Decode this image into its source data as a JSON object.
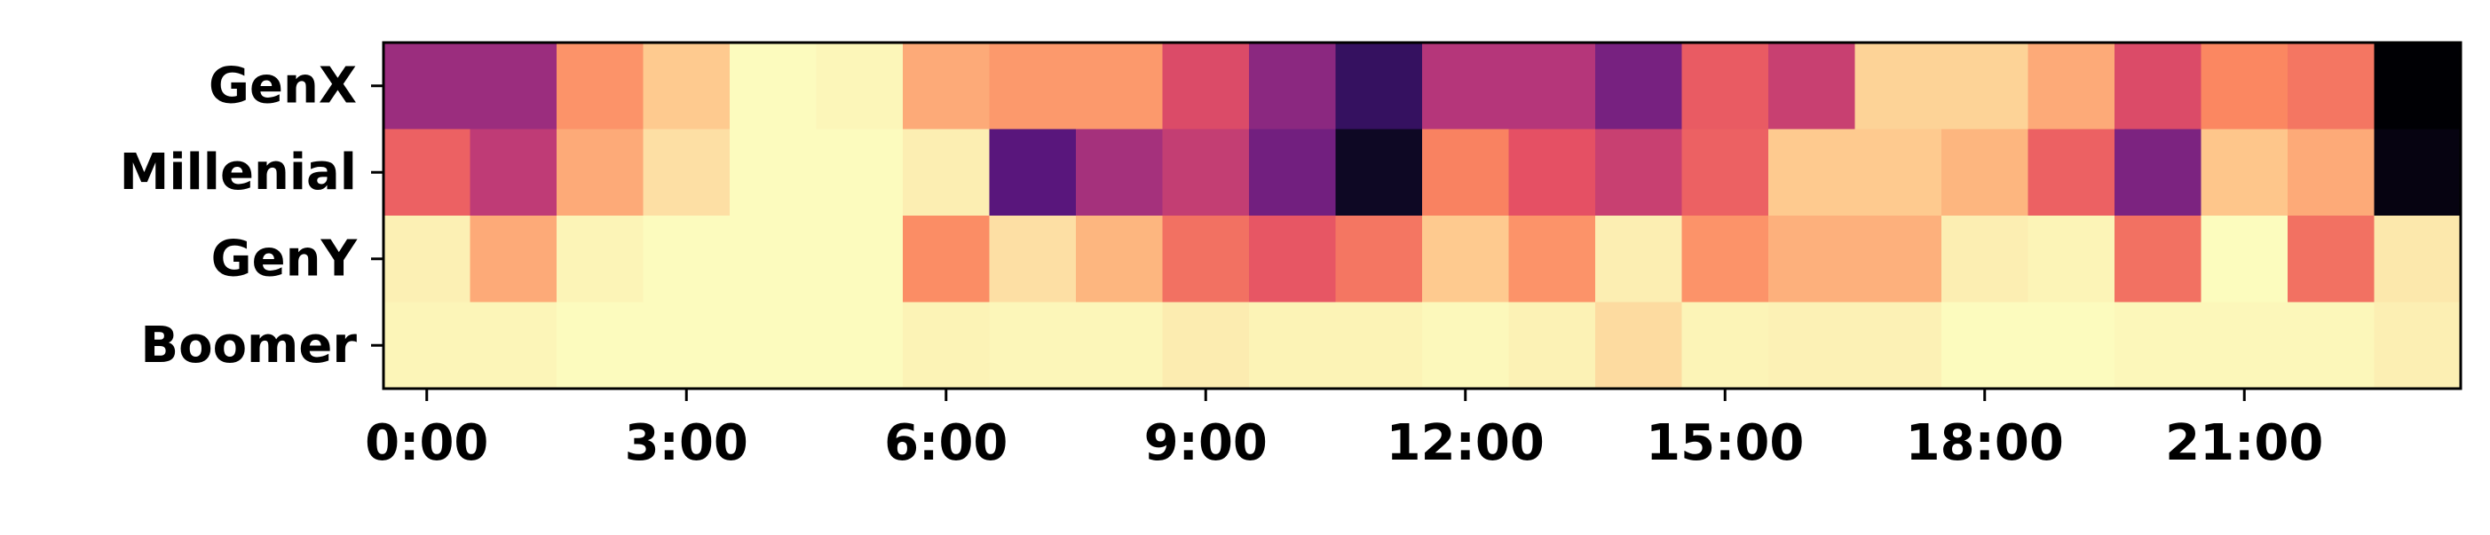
{
  "chart_data": {
    "type": "heatmap",
    "title": "",
    "xlabel": "",
    "ylabel": "",
    "colormap": "magma",
    "value_range": [
      0,
      1
    ],
    "rows": [
      "GenX",
      "Millenial",
      "GenY",
      "Boomer"
    ],
    "hours": 24,
    "x_ticks": [
      {
        "hour": 0,
        "label": "0:00"
      },
      {
        "hour": 3,
        "label": "3:00"
      },
      {
        "hour": 6,
        "label": "6:00"
      },
      {
        "hour": 9,
        "label": "9:00"
      },
      {
        "hour": 12,
        "label": "12:00"
      },
      {
        "hour": 15,
        "label": "15:00"
      },
      {
        "hour": 18,
        "label": "18:00"
      },
      {
        "hour": 21,
        "label": "21:00"
      }
    ],
    "values": [
      [
        0.35,
        0.35,
        0.62,
        0.72,
        0.98,
        0.92,
        0.66,
        0.63,
        0.63,
        0.48,
        0.32,
        0.15,
        0.4,
        0.4,
        0.28,
        0.52,
        0.44,
        0.74,
        0.74,
        0.66,
        0.48,
        0.6,
        0.57,
        0.0
      ],
      [
        0.53,
        0.42,
        0.66,
        0.77,
        0.98,
        0.98,
        0.82,
        0.22,
        0.37,
        0.43,
        0.27,
        0.05,
        0.59,
        0.5,
        0.44,
        0.53,
        0.72,
        0.72,
        0.68,
        0.53,
        0.29,
        0.71,
        0.66,
        0.02
      ],
      [
        0.85,
        0.66,
        0.89,
        0.98,
        0.98,
        0.98,
        0.61,
        0.77,
        0.68,
        0.56,
        0.51,
        0.57,
        0.72,
        0.62,
        0.82,
        0.62,
        0.67,
        0.67,
        0.82,
        0.89,
        0.56,
        0.99,
        0.56,
        0.79
      ],
      [
        0.9,
        0.9,
        0.98,
        0.98,
        0.98,
        0.98,
        0.88,
        0.92,
        0.92,
        0.8,
        0.88,
        0.88,
        0.94,
        0.87,
        0.76,
        0.89,
        0.86,
        0.86,
        0.98,
        0.98,
        0.93,
        0.93,
        0.93,
        0.84
      ]
    ]
  }
}
